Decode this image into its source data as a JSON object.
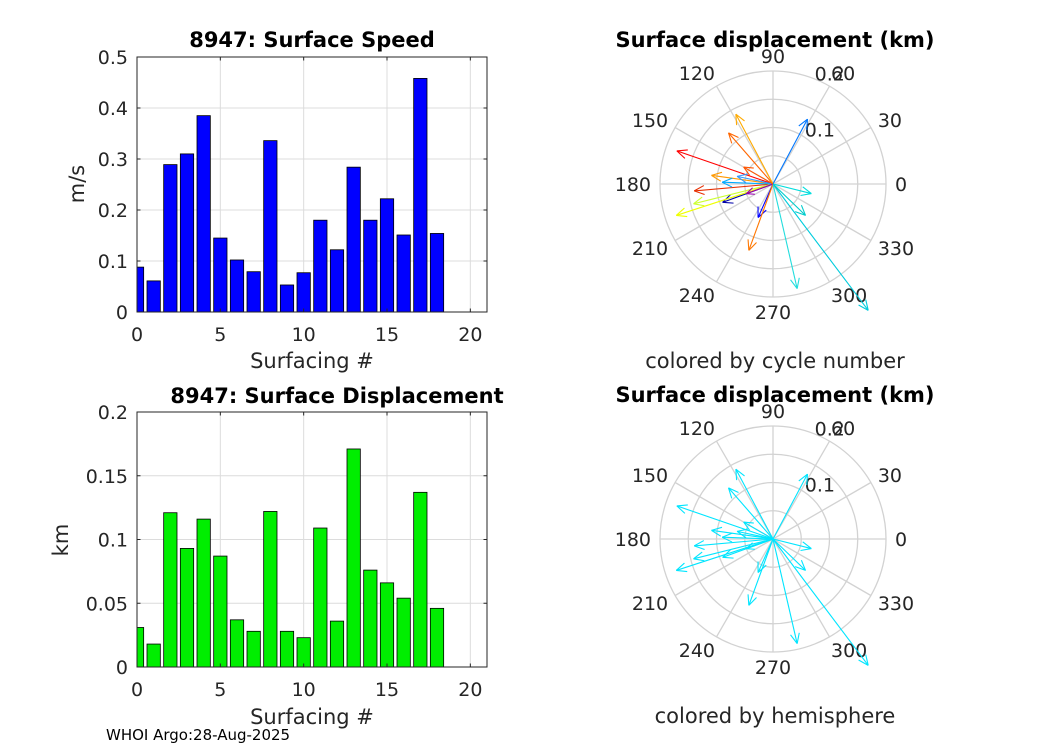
{
  "footer": "WHOI Argo:28-Aug-2025",
  "chart_data": [
    {
      "type": "bar",
      "title": "8947: Surface Speed",
      "xlabel": "Surfacing #",
      "ylabel": "m/s",
      "xlim": [
        0,
        21
      ],
      "ylim": [
        0,
        0.5
      ],
      "xticks": [
        0,
        5,
        10,
        15,
        20
      ],
      "yticks": [
        0,
        0.1,
        0.2,
        0.3,
        0.4,
        0.5
      ],
      "yticklabels": [
        "0",
        "0.1",
        "0.2",
        "0.3",
        "0.4",
        "0.5"
      ],
      "x": [
        0,
        1,
        2,
        3,
        4,
        5,
        6,
        7,
        8,
        9,
        10,
        11,
        12,
        13,
        14,
        15,
        16,
        17,
        18
      ],
      "values": [
        0.088,
        0.061,
        0.289,
        0.31,
        0.385,
        0.145,
        0.102,
        0.079,
        0.336,
        0.053,
        0.077,
        0.18,
        0.122,
        0.284,
        0.18,
        0.222,
        0.151,
        0.458,
        0.154
      ],
      "color": "#0000ff",
      "grid": true
    },
    {
      "type": "bar",
      "title": "8947: Surface Displacement",
      "xlabel": "Surfacing #",
      "ylabel": "km",
      "xlim": [
        0,
        21
      ],
      "ylim": [
        0,
        0.2
      ],
      "xticks": [
        0,
        5,
        10,
        15,
        20
      ],
      "yticks": [
        0,
        0.05,
        0.1,
        0.15,
        0.2
      ],
      "yticklabels": [
        "0",
        "0.05",
        "0.1",
        "0.15",
        "0.2"
      ],
      "x": [
        0,
        1,
        2,
        3,
        4,
        5,
        6,
        7,
        8,
        9,
        10,
        11,
        12,
        13,
        14,
        15,
        16,
        17,
        18
      ],
      "values": [
        0.031,
        0.018,
        0.121,
        0.093,
        0.116,
        0.087,
        0.037,
        0.028,
        0.122,
        0.028,
        0.023,
        0.109,
        0.036,
        0.171,
        0.076,
        0.066,
        0.054,
        0.137,
        0.046
      ],
      "color": "#00ee00",
      "grid": true
    },
    {
      "type": "polar",
      "title": "Surface displacement (km)",
      "caption": "colored by cycle number",
      "rlim": [
        0,
        0.2
      ],
      "rticks": [
        0.1,
        0.2
      ],
      "rticklabels": [
        "0.1",
        "0.2"
      ],
      "angle_labels": [
        "0",
        "30",
        "60",
        "90",
        "120",
        "150",
        "180",
        "210",
        "240",
        "270",
        "300",
        "330"
      ],
      "arrows": [
        {
          "angle": 200,
          "r": 0.095,
          "color": "#0000aa"
        },
        {
          "angle": 246,
          "r": 0.065,
          "color": "#0000ff"
        },
        {
          "angle": 161,
          "r": 0.18,
          "color": "#ff0000"
        },
        {
          "angle": 185,
          "r": 0.14,
          "color": "#e62e00"
        },
        {
          "angle": 131,
          "r": 0.12,
          "color": "#ff6600"
        },
        {
          "angle": 250,
          "r": 0.125,
          "color": "#ff7700"
        },
        {
          "angle": 172,
          "r": 0.11,
          "color": "#ff9900"
        },
        {
          "angle": 194,
          "r": 0.145,
          "color": "#ccff33"
        },
        {
          "angle": 198,
          "r": 0.18,
          "color": "#eeff00"
        },
        {
          "angle": 118,
          "r": 0.14,
          "color": "#ffaa00"
        },
        {
          "angle": 178,
          "r": 0.09,
          "color": "#00aaff"
        },
        {
          "angle": 307,
          "r": 0.28,
          "color": "#00ccdd"
        },
        {
          "angle": 283,
          "r": 0.19,
          "color": "#22dddd"
        },
        {
          "angle": 62,
          "r": 0.13,
          "color": "#0077ff"
        },
        {
          "angle": 168,
          "r": 0.065,
          "color": "#3399ff"
        },
        {
          "angle": 200,
          "r": 0.05,
          "color": "#9900aa"
        },
        {
          "angle": 346,
          "r": 0.07,
          "color": "#00dddd"
        },
        {
          "angle": 316,
          "r": 0.08,
          "color": "#00cccc"
        },
        {
          "angle": 150,
          "r": 0.06,
          "color": "#ff5500"
        }
      ]
    },
    {
      "type": "polar",
      "title": "Surface displacement (km)",
      "caption": "colored by hemisphere",
      "rlim": [
        0,
        0.2
      ],
      "rticks": [
        0.1,
        0.2
      ],
      "rticklabels": [
        "0.1",
        "0.2"
      ],
      "angle_labels": [
        "0",
        "30",
        "60",
        "90",
        "120",
        "150",
        "180",
        "210",
        "240",
        "270",
        "300",
        "330"
      ],
      "arrow_color": "#00e5ff",
      "arrows": [
        {
          "angle": 200,
          "r": 0.095
        },
        {
          "angle": 246,
          "r": 0.065
        },
        {
          "angle": 161,
          "r": 0.18
        },
        {
          "angle": 185,
          "r": 0.14
        },
        {
          "angle": 131,
          "r": 0.12
        },
        {
          "angle": 250,
          "r": 0.125
        },
        {
          "angle": 172,
          "r": 0.11
        },
        {
          "angle": 194,
          "r": 0.145
        },
        {
          "angle": 198,
          "r": 0.18
        },
        {
          "angle": 118,
          "r": 0.14
        },
        {
          "angle": 178,
          "r": 0.09
        },
        {
          "angle": 307,
          "r": 0.28
        },
        {
          "angle": 283,
          "r": 0.19
        },
        {
          "angle": 62,
          "r": 0.13
        },
        {
          "angle": 168,
          "r": 0.065
        },
        {
          "angle": 200,
          "r": 0.05
        },
        {
          "angle": 346,
          "r": 0.07
        },
        {
          "angle": 316,
          "r": 0.08
        },
        {
          "angle": 150,
          "r": 0.06
        }
      ]
    }
  ]
}
